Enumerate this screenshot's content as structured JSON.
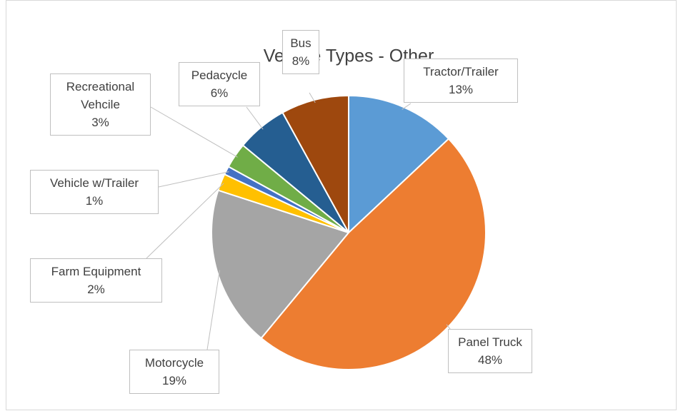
{
  "chart_data": {
    "type": "pie",
    "title": "Vehicle Types - Other",
    "categories": [
      "Tractor/Trailer",
      "Panel Truck",
      "Motorcycle",
      "Farm Equipment",
      "Vehicle w/Trailer",
      "Recreational Vehcile",
      "Pedacycle",
      "Bus"
    ],
    "values": [
      13,
      48,
      19,
      2,
      1,
      3,
      6,
      8
    ],
    "value_labels": [
      "13%",
      "48%",
      "19%",
      "2%",
      "1%",
      "3%",
      "6%",
      "8%"
    ],
    "colors": [
      "#5b9bd5",
      "#ed7d31",
      "#a5a5a5",
      "#ffc000",
      "#4472c4",
      "#70ad47",
      "#255e91",
      "#9e480e"
    ]
  }
}
